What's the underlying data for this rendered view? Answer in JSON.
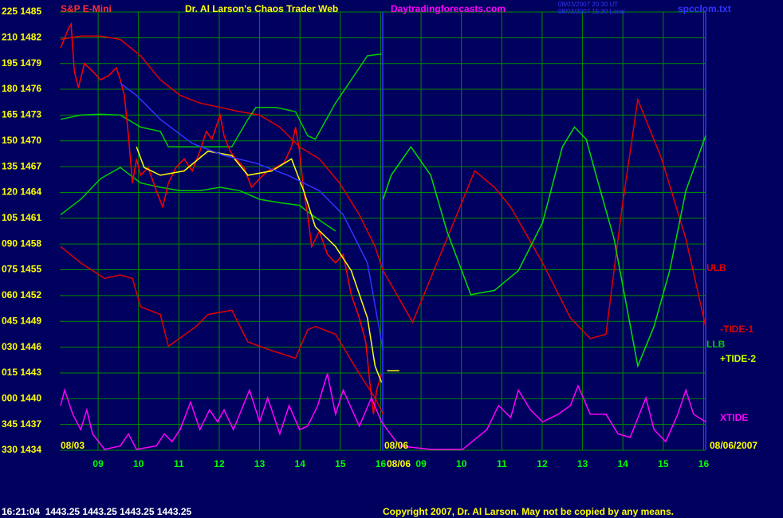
{
  "chart_data": {
    "type": "line",
    "symbol": "S&P E-Mini",
    "title": "Dr. Al Larson's Chaos Trader Web",
    "website": "Daytradingforecasts.com",
    "timestamps": [
      "08/03/2007 20:30 UT",
      "08/03/2007 15:30 Local"
    ],
    "file": "spcclom.txt",
    "status": "16:21:04  1443.25 1443.25 1443.25 1443.25",
    "copyright": "Copyright 2007, Dr. Al Larson. May not be copied by any means.",
    "date_labels": [
      "08/03",
      "08/06",
      "08/06",
      "08/06/2007"
    ],
    "grid": true,
    "grid_color": "#008a00",
    "xlim": [
      0.05,
      16.05
    ],
    "xticks": [
      {
        "value": 1,
        "label": "09"
      },
      {
        "value": 2,
        "label": "10"
      },
      {
        "value": 3,
        "label": "11"
      },
      {
        "value": 4,
        "label": "12"
      },
      {
        "value": 5,
        "label": "13"
      },
      {
        "value": 6,
        "label": "14"
      },
      {
        "value": 7,
        "label": "15"
      },
      {
        "value": 8,
        "label": "16"
      },
      {
        "value": 9,
        "label": "09"
      },
      {
        "value": 10,
        "label": "10"
      },
      {
        "value": 11,
        "label": "11"
      },
      {
        "value": 12,
        "label": "12"
      },
      {
        "value": 13,
        "label": "13"
      },
      {
        "value": 14,
        "label": "14"
      },
      {
        "value": 15,
        "label": "15"
      },
      {
        "value": 16,
        "label": "16"
      }
    ],
    "ylim": [
      1434,
      1485
    ],
    "yticks": [
      {
        "value": 1485,
        "label": "225 1485"
      },
      {
        "value": 1482,
        "label": "210 1482"
      },
      {
        "value": 1479,
        "label": "195 1479"
      },
      {
        "value": 1476,
        "label": "180 1476"
      },
      {
        "value": 1473,
        "label": "165 1473"
      },
      {
        "value": 1470,
        "label": "150 1470"
      },
      {
        "value": 1467,
        "label": "135 1467"
      },
      {
        "value": 1464,
        "label": "120 1464"
      },
      {
        "value": 1461,
        "label": "105 1461"
      },
      {
        "value": 1458,
        "label": "090 1458"
      },
      {
        "value": 1455,
        "label": "075 1455"
      },
      {
        "value": 1452,
        "label": "060 1452"
      },
      {
        "value": 1449,
        "label": "045 1449"
      },
      {
        "value": 1446,
        "label": "030 1446"
      },
      {
        "value": 1443,
        "label": "015 1443"
      },
      {
        "value": 1440,
        "label": "000 1440"
      },
      {
        "value": 1437,
        "label": "345 1437"
      },
      {
        "value": 1434,
        "label": "330 1434"
      }
    ],
    "series": [
      {
        "name": "ULB",
        "color": "#e00000",
        "x": [
          0.07,
          0.57,
          1.06,
          1.55,
          2.05,
          2.54,
          3.03,
          3.52,
          4.02,
          4.51,
          5.0,
          5.5,
          5.99,
          6.48,
          6.98,
          7.47,
          7.86,
          8.06
        ],
        "values": [
          1481.8,
          1482.2,
          1482.2,
          1481.8,
          1479.9,
          1477.1,
          1475.3,
          1474.4,
          1473.9,
          1473.4,
          1473.0,
          1471.6,
          1469.3,
          1467.9,
          1465.1,
          1461.4,
          1457.7,
          1454.9
        ]
      },
      {
        "color": "#e00000",
        "x": [
          0.07,
          0.57,
          1.16,
          1.55,
          1.85,
          2.05,
          2.54,
          2.74,
          3.43,
          3.72,
          4.31,
          4.71,
          5.3,
          5.89,
          6.19,
          6.38,
          6.88,
          7.47,
          7.86,
          8.06
        ],
        "values": [
          1457.7,
          1455.8,
          1454.0,
          1454.4,
          1454.0,
          1450.7,
          1449.8,
          1446.1,
          1448.4,
          1449.8,
          1450.3,
          1446.6,
          1445.6,
          1444.7,
          1448.0,
          1448.4,
          1447.5,
          1442.9,
          1440.1,
          1438.2
        ]
      },
      {
        "color": "#00cc00",
        "x": [
          0.07,
          0.57,
          1.06,
          1.55,
          2.05,
          2.54,
          2.74,
          3.13,
          3.72,
          4.31,
          4.71,
          4.91,
          5.4,
          5.89,
          6.19,
          6.38,
          6.88,
          7.27,
          7.67,
          8.02
        ],
        "values": [
          1472.5,
          1473.0,
          1473.1,
          1473.0,
          1471.6,
          1471.1,
          1469.3,
          1469.3,
          1469.3,
          1469.3,
          1472.5,
          1473.9,
          1473.9,
          1473.4,
          1470.6,
          1470.2,
          1474.4,
          1477.1,
          1479.9,
          1480.1
        ]
      },
      {
        "name": "LLB",
        "color": "#00cc00",
        "x": [
          0.07,
          0.57,
          1.06,
          1.55,
          2.05,
          2.54,
          3.03,
          3.52,
          4.02,
          4.51,
          5.0,
          5.5,
          5.99,
          6.29,
          6.88
        ],
        "values": [
          1461.4,
          1463.2,
          1465.6,
          1466.9,
          1465.1,
          1464.6,
          1464.2,
          1464.2,
          1464.6,
          1464.2,
          1463.2,
          1462.8,
          1462.5,
          1461.4,
          1459.5
        ]
      },
      {
        "name": "-TIDE-1",
        "color": "#e00000",
        "x": [
          8.06,
          8.79,
          9.64,
          10.33,
          10.82,
          11.22,
          12.01,
          12.7,
          13.19,
          13.58,
          13.98,
          14.37,
          14.96,
          15.56,
          16.05
        ],
        "values": [
          1454.9,
          1448.9,
          1458.6,
          1466.5,
          1464.6,
          1462.3,
          1455.8,
          1449.4,
          1447.0,
          1447.5,
          1462.3,
          1474.8,
          1467.9,
          1458.6,
          1448.4
        ]
      },
      {
        "name": "+TIDE-2",
        "color": "#00dd00",
        "x": [
          8.06,
          8.26,
          8.75,
          9.24,
          9.64,
          10.23,
          10.82,
          11.41,
          12.01,
          12.5,
          12.8,
          13.09,
          13.39,
          13.78,
          14.37,
          14.77,
          15.16,
          15.56,
          16.05
        ],
        "values": [
          1463.2,
          1466.0,
          1469.3,
          1466.0,
          1459.5,
          1452.1,
          1452.6,
          1454.9,
          1460.5,
          1469.3,
          1471.6,
          1470.2,
          1465.1,
          1458.6,
          1443.8,
          1448.4,
          1454.9,
          1464.2,
          1470.6
        ]
      },
      {
        "color": "#ff0000",
        "x": [
          0.07,
          0.27,
          0.33,
          0.41,
          0.51,
          0.66,
          0.86,
          1.06,
          1.26,
          1.45,
          1.55,
          1.65,
          1.75,
          1.85,
          1.95,
          2.05,
          2.24,
          2.44,
          2.6,
          2.74,
          2.93,
          3.13,
          3.33,
          3.52,
          3.68,
          3.82,
          4.02,
          4.12,
          4.27,
          4.41,
          4.61,
          4.8,
          5.0,
          5.2,
          5.4,
          5.6,
          5.79,
          5.89,
          5.99,
          6.09,
          6.19,
          6.29,
          6.48,
          6.68,
          6.88,
          7.07,
          7.27,
          7.47,
          7.63,
          7.73,
          7.82,
          7.9,
          8.02
        ],
        "values": [
          1480.8,
          1483.1,
          1483.6,
          1478.1,
          1476.2,
          1479.0,
          1478.1,
          1477.1,
          1477.6,
          1478.5,
          1477.1,
          1475.3,
          1470.6,
          1465.1,
          1467.9,
          1466.0,
          1466.9,
          1464.2,
          1462.3,
          1465.1,
          1466.9,
          1467.9,
          1466.5,
          1468.8,
          1471.1,
          1470.2,
          1473.0,
          1470.6,
          1468.8,
          1467.9,
          1466.9,
          1464.6,
          1465.6,
          1466.5,
          1466.9,
          1467.4,
          1469.3,
          1471.6,
          1468.8,
          1464.2,
          1461.4,
          1457.7,
          1459.5,
          1456.8,
          1455.8,
          1456.8,
          1452.1,
          1449.4,
          1446.6,
          1441.9,
          1438.2,
          1441.0,
          1442.9
        ]
      },
      {
        "color": "#ffff00",
        "x": [
          1.95,
          2.14,
          2.54,
          3.13,
          3.72,
          4.31,
          4.71,
          5.3,
          5.79,
          6.09,
          6.38,
          6.88,
          7.27,
          7.67,
          7.86,
          8.02
        ],
        "values": [
          1469.3,
          1466.9,
          1466.0,
          1466.5,
          1468.8,
          1468.3,
          1466.0,
          1466.5,
          1467.9,
          1464.2,
          1460.0,
          1457.7,
          1454.9,
          1449.4,
          1443.8,
          1441.9
        ]
      },
      {
        "color": "#3333ff",
        "x": [
          1.55,
          1.95,
          2.54,
          3.33,
          4.12,
          4.91,
          5.7,
          6.48,
          7.07,
          7.67,
          8.06
        ],
        "values": [
          1476.7,
          1475.3,
          1472.5,
          1469.7,
          1468.3,
          1467.4,
          1466.0,
          1464.2,
          1461.4,
          1455.8,
          1445.6
        ]
      },
      {
        "name": "XTIDE",
        "color": "#ff00ff",
        "x": [
          0.07,
          0.17,
          0.37,
          0.57,
          0.72,
          0.86,
          1.16,
          1.55,
          1.75,
          1.95,
          2.44,
          2.64,
          2.83,
          3.03,
          3.29,
          3.52,
          3.76,
          3.96,
          4.12,
          4.35,
          4.75,
          5.0,
          5.2,
          5.5,
          5.73,
          5.99,
          6.19,
          6.44,
          6.68,
          6.88,
          7.07,
          7.47,
          7.77,
          8.02,
          8.46,
          9.24,
          10.03,
          10.63,
          10.92,
          11.22,
          11.41,
          11.71,
          12.01,
          12.4,
          12.7,
          12.89,
          13.19,
          13.58,
          13.88,
          14.18,
          14.57,
          14.77,
          15.06,
          15.36,
          15.56,
          15.75,
          16.05
        ],
        "values": [
          1439.2,
          1441.0,
          1438.2,
          1436.4,
          1438.7,
          1435.9,
          1434.1,
          1434.5,
          1435.9,
          1434.1,
          1434.5,
          1435.9,
          1435.0,
          1436.4,
          1439.6,
          1436.4,
          1438.7,
          1437.3,
          1438.7,
          1436.4,
          1441.0,
          1437.3,
          1440.1,
          1435.9,
          1439.2,
          1436.4,
          1436.8,
          1439.2,
          1442.9,
          1438.2,
          1441.0,
          1436.8,
          1440.1,
          1437.3,
          1434.5,
          1434.1,
          1434.1,
          1436.4,
          1439.2,
          1437.8,
          1441.0,
          1438.7,
          1437.3,
          1438.2,
          1439.2,
          1441.5,
          1438.2,
          1438.2,
          1435.9,
          1435.5,
          1440.1,
          1436.4,
          1435.0,
          1438.2,
          1441.0,
          1438.2,
          1437.3
        ]
      },
      {
        "color": "#ffff00",
        "x": [
          8.16,
          8.46
        ],
        "values": [
          1443.25,
          1443.25
        ]
      }
    ]
  }
}
